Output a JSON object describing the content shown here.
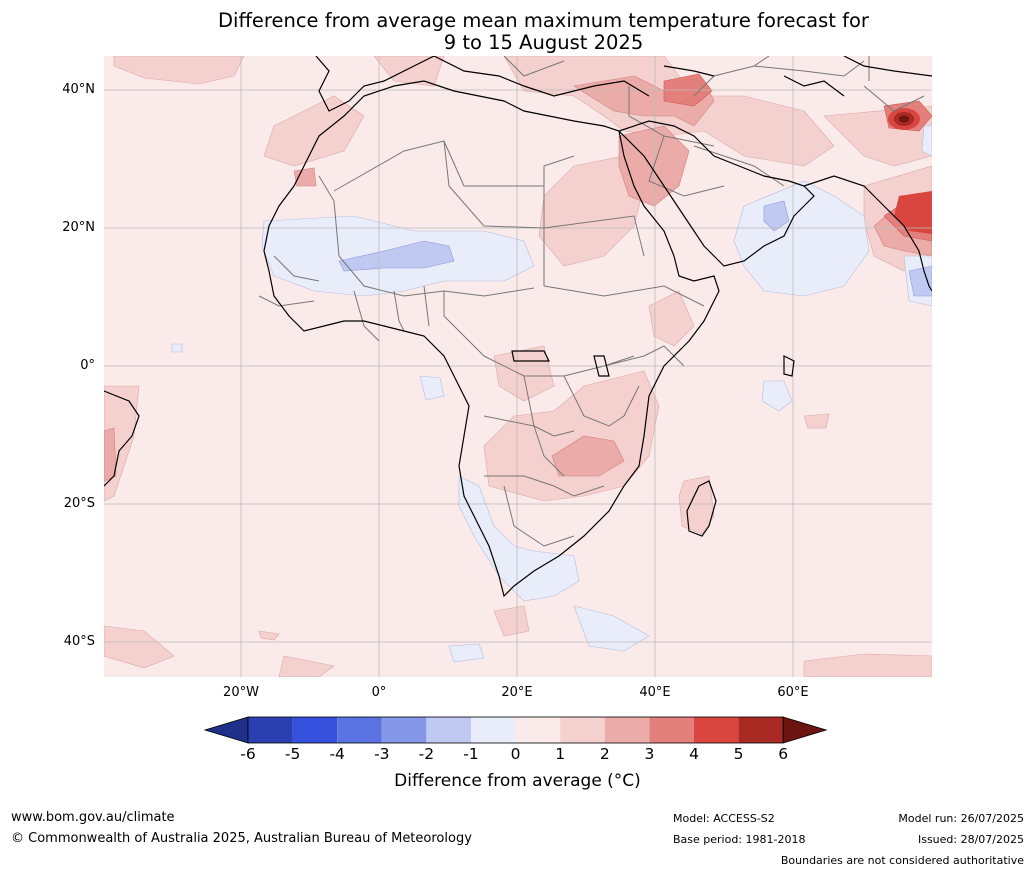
{
  "title_line1": "Difference from average mean maximum temperature forecast for",
  "title_line2": "9 to 15 August 2025",
  "lat_labels": [
    "40°N",
    "20°N",
    "0°",
    "20°S",
    "40°S"
  ],
  "lon_labels": [
    "20°W",
    "0°",
    "20°E",
    "40°E",
    "60°E"
  ],
  "colorbar": {
    "ticks": [
      "-6",
      "-5",
      "-4",
      "-3",
      "-2",
      "-1",
      "0",
      "1",
      "2",
      "3",
      "4",
      "5",
      "6"
    ],
    "colors": [
      "#1f2f8c",
      "#2a3fb0",
      "#3550dd",
      "#5b72e2",
      "#8598e8",
      "#c0c9f2",
      "#e9edfa",
      "#fbeaea",
      "#f4d1cf",
      "#ebaba8",
      "#e3807b",
      "#d9463f",
      "#a82a23",
      "#6b1410"
    ],
    "title": "Difference from average ($^\\circ$C)",
    "title_display": "Difference from average (°C)"
  },
  "footer": {
    "url": "www.bom.gov.au/climate",
    "copyright": "© Commonwealth of Australia 2025, Australian Bureau of Meteorology",
    "model": "Model: ACCESS-S2",
    "base_period": "Base period: 1981-2018",
    "model_run": "Model run: 26/07/2025",
    "issued": "Issued: 28/07/2025",
    "disclaimer": "Boundaries are not considered authoritative"
  },
  "map": {
    "background_color": "#fbeaea",
    "land_outline_color": "#000000",
    "border_color": "#777777",
    "grid_color": "#bbbbbb"
  }
}
